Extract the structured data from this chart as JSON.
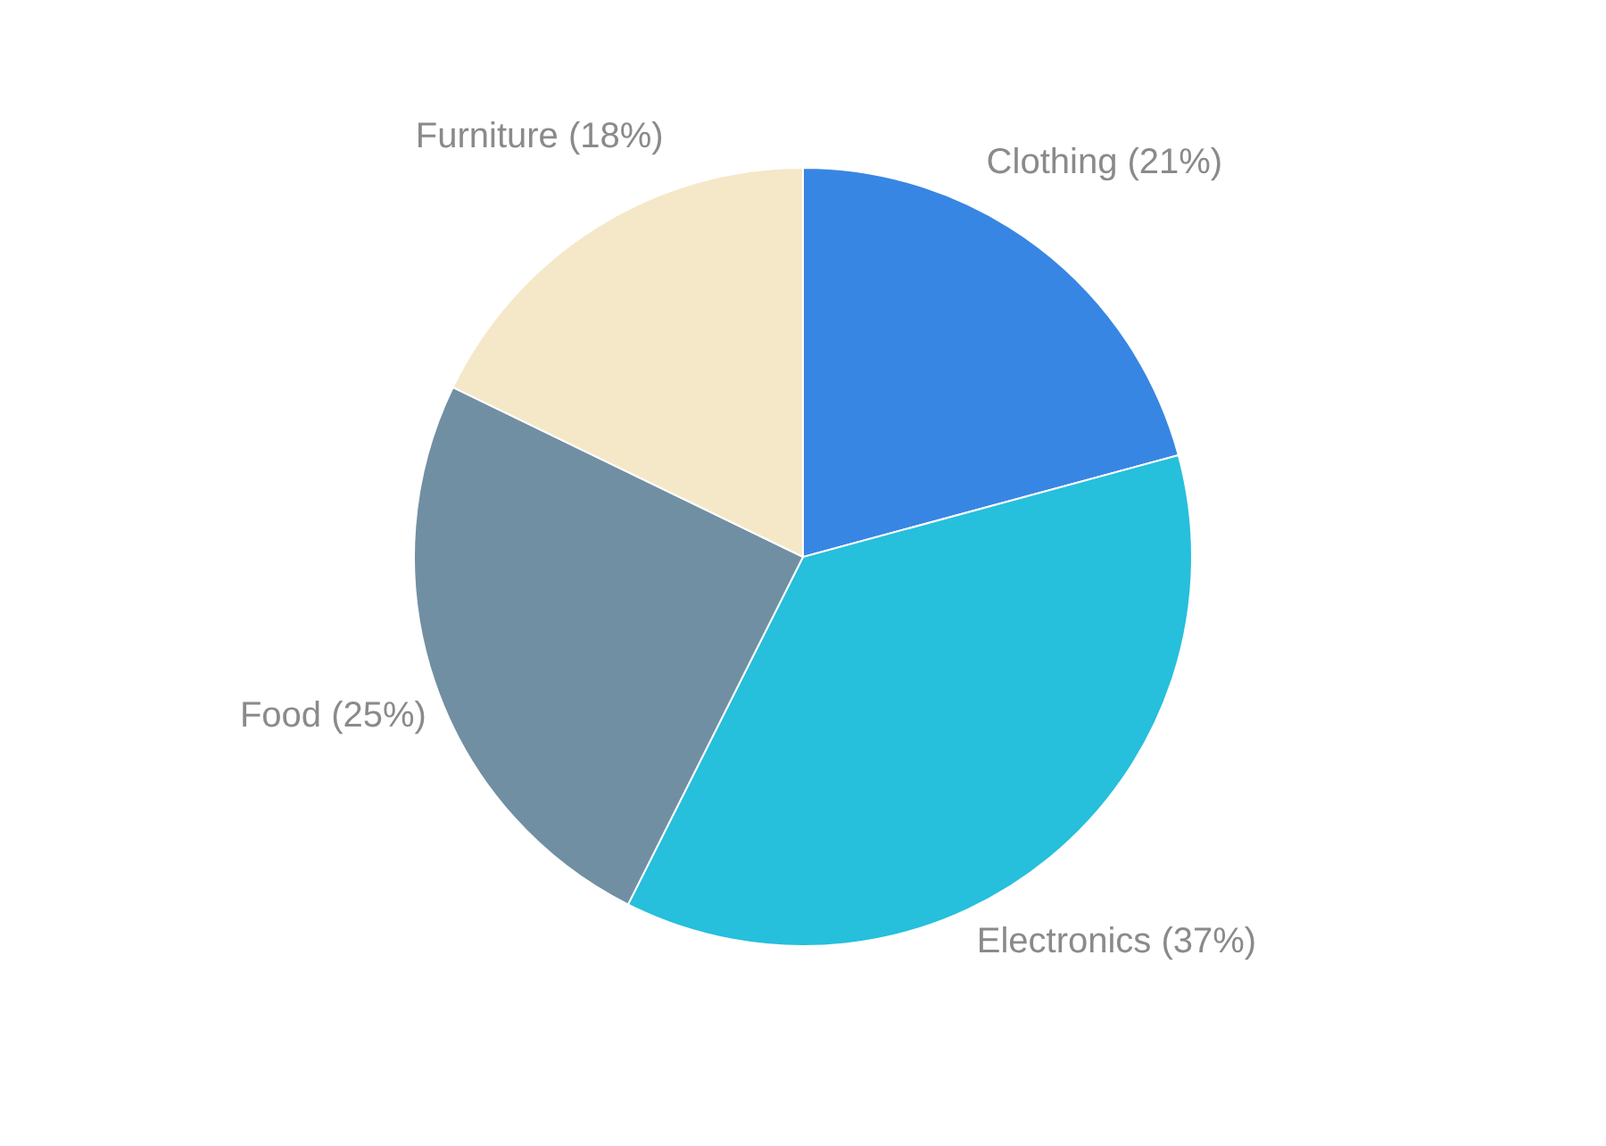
{
  "chart_data": {
    "type": "pie",
    "categories": [
      "Clothing (21%)",
      "Electronics (37%)",
      "Food (25%)",
      "Furniture (18%)"
    ],
    "values": [
      21,
      37,
      25,
      18
    ],
    "colors": [
      "#3886e3",
      "#26bfdc",
      "#718fa3",
      "#f5e8c8"
    ]
  }
}
